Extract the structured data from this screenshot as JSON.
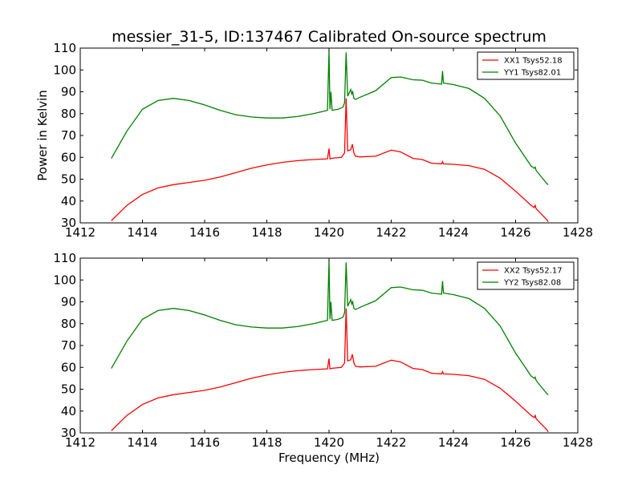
{
  "title": "messier_31-5, ID:137467 Calibrated On-source spectrum",
  "colors": {
    "xx": "#ff0000",
    "yy": "#008000"
  },
  "chart_data": [
    {
      "type": "line",
      "ylabel": "Power in Kelvin",
      "xlabel": "",
      "xlim": [
        1412,
        1428
      ],
      "ylim": [
        30,
        110
      ],
      "xticks": [
        "1412",
        "1414",
        "1416",
        "1418",
        "1420",
        "1422",
        "1424",
        "1426",
        "1428"
      ],
      "yticks": [
        "30",
        "40",
        "50",
        "60",
        "70",
        "80",
        "90",
        "100",
        "110"
      ],
      "legend_position": "top-right",
      "series": [
        {
          "name": "XX1 Tsys52.18",
          "color": "#ff0000",
          "x": [
            1413.0,
            1413.5,
            1414.0,
            1414.5,
            1415.0,
            1415.5,
            1416.0,
            1416.5,
            1417.0,
            1417.5,
            1418.0,
            1418.5,
            1419.0,
            1419.5,
            1419.95,
            1420.0,
            1420.03,
            1420.1,
            1420.4,
            1420.5,
            1420.55,
            1420.6,
            1420.7,
            1420.75,
            1420.8,
            1420.85,
            1421.0,
            1421.5,
            1422.0,
            1422.3,
            1422.7,
            1423.0,
            1423.3,
            1423.62,
            1423.65,
            1423.68,
            1424.0,
            1424.5,
            1425.0,
            1425.5,
            1426.0,
            1426.5,
            1426.6,
            1426.63,
            1426.66,
            1427.0,
            1427.05
          ],
          "y": [
            31,
            38,
            43,
            46,
            47.5,
            48.5,
            49.5,
            51,
            53,
            55,
            56.5,
            57.7,
            58.5,
            59,
            59.3,
            64,
            59.3,
            59.6,
            60,
            62,
            87,
            63,
            63.5,
            66,
            62,
            60.5,
            60.2,
            60.5,
            63.3,
            62.5,
            59.5,
            59,
            57.3,
            57,
            58,
            57,
            56.8,
            56.2,
            54.5,
            50.5,
            44.5,
            38,
            37,
            38,
            36.5,
            31.5,
            30.5
          ]
        },
        {
          "name": "YY1 Tsys82.01",
          "color": "#008000",
          "x": [
            1413.0,
            1413.5,
            1414.0,
            1414.5,
            1415.0,
            1415.5,
            1416.0,
            1416.5,
            1417.0,
            1417.5,
            1418.0,
            1418.5,
            1419.0,
            1419.5,
            1419.95,
            1420.0,
            1420.03,
            1420.06,
            1420.1,
            1420.3,
            1420.45,
            1420.5,
            1420.55,
            1420.6,
            1420.7,
            1420.73,
            1420.76,
            1420.8,
            1420.85,
            1421.0,
            1421.5,
            1422.0,
            1422.3,
            1422.7,
            1423.0,
            1423.3,
            1423.62,
            1423.65,
            1423.68,
            1424.0,
            1424.5,
            1425.0,
            1425.5,
            1426.0,
            1426.5,
            1426.6,
            1426.63,
            1426.66,
            1427.0,
            1427.05
          ],
          "y": [
            59.5,
            72,
            82,
            86,
            87,
            86,
            84,
            81.5,
            79.5,
            78.5,
            78,
            78,
            78.7,
            80,
            81.5,
            109,
            82,
            90,
            81.5,
            82,
            83,
            85,
            108,
            88,
            91,
            89,
            90,
            87,
            86.5,
            87.5,
            90.5,
            96.5,
            96.8,
            95.5,
            95.3,
            94,
            93.5,
            99.5,
            94,
            93.3,
            91.5,
            87,
            79,
            66.5,
            56,
            55,
            55.5,
            54,
            48,
            47.5
          ]
        }
      ]
    },
    {
      "type": "line",
      "ylabel": "",
      "xlabel": "Frequency (MHz)",
      "xlim": [
        1412,
        1428
      ],
      "ylim": [
        30,
        110
      ],
      "xticks": [
        "1412",
        "1414",
        "1416",
        "1418",
        "1420",
        "1422",
        "1424",
        "1426",
        "1428"
      ],
      "yticks": [
        "30",
        "40",
        "50",
        "60",
        "70",
        "80",
        "90",
        "100",
        "110"
      ],
      "legend_position": "top-right",
      "series": [
        {
          "name": "XX2 Tsys52.17",
          "color": "#ff0000",
          "x": [
            1413.0,
            1413.5,
            1414.0,
            1414.5,
            1415.0,
            1415.5,
            1416.0,
            1416.5,
            1417.0,
            1417.5,
            1418.0,
            1418.5,
            1419.0,
            1419.5,
            1419.95,
            1420.0,
            1420.03,
            1420.1,
            1420.4,
            1420.5,
            1420.55,
            1420.6,
            1420.7,
            1420.75,
            1420.8,
            1420.85,
            1421.0,
            1421.5,
            1422.0,
            1422.3,
            1422.7,
            1423.0,
            1423.3,
            1423.62,
            1423.65,
            1423.68,
            1424.0,
            1424.5,
            1425.0,
            1425.5,
            1426.0,
            1426.5,
            1426.6,
            1426.63,
            1426.66,
            1427.0,
            1427.05
          ],
          "y": [
            31,
            38,
            43,
            46,
            47.5,
            48.5,
            49.5,
            51,
            53,
            55,
            56.5,
            57.7,
            58.5,
            59,
            59.3,
            64,
            59.3,
            59.6,
            60,
            62,
            87,
            63,
            63.5,
            66,
            62,
            60.5,
            60.2,
            60.5,
            63.3,
            62.5,
            59.5,
            59,
            57.3,
            57,
            58,
            57,
            56.8,
            56.2,
            54.5,
            50.5,
            44.5,
            38,
            37,
            38,
            36.5,
            31.5,
            30.5
          ]
        },
        {
          "name": "YY2 Tsys82.08",
          "color": "#008000",
          "x": [
            1413.0,
            1413.5,
            1414.0,
            1414.5,
            1415.0,
            1415.5,
            1416.0,
            1416.5,
            1417.0,
            1417.5,
            1418.0,
            1418.5,
            1419.0,
            1419.5,
            1419.95,
            1420.0,
            1420.03,
            1420.06,
            1420.1,
            1420.3,
            1420.45,
            1420.5,
            1420.55,
            1420.6,
            1420.7,
            1420.73,
            1420.76,
            1420.8,
            1420.85,
            1421.0,
            1421.5,
            1422.0,
            1422.3,
            1422.7,
            1423.0,
            1423.3,
            1423.62,
            1423.65,
            1423.68,
            1424.0,
            1424.5,
            1425.0,
            1425.5,
            1426.0,
            1426.5,
            1426.6,
            1426.63,
            1426.66,
            1427.0,
            1427.05
          ],
          "y": [
            59.5,
            72,
            82,
            86,
            87,
            86,
            84,
            81.5,
            79.5,
            78.5,
            78,
            78,
            78.7,
            80,
            81.5,
            109,
            82,
            90,
            81.5,
            82,
            83,
            85,
            108,
            88,
            91,
            89,
            90,
            87,
            86.5,
            87.5,
            90.5,
            96.5,
            96.8,
            95.5,
            95.3,
            94,
            93.5,
            99.5,
            94,
            93.3,
            91.5,
            87,
            79,
            66.5,
            56,
            55,
            55.5,
            54,
            48,
            47.5
          ]
        }
      ]
    }
  ]
}
